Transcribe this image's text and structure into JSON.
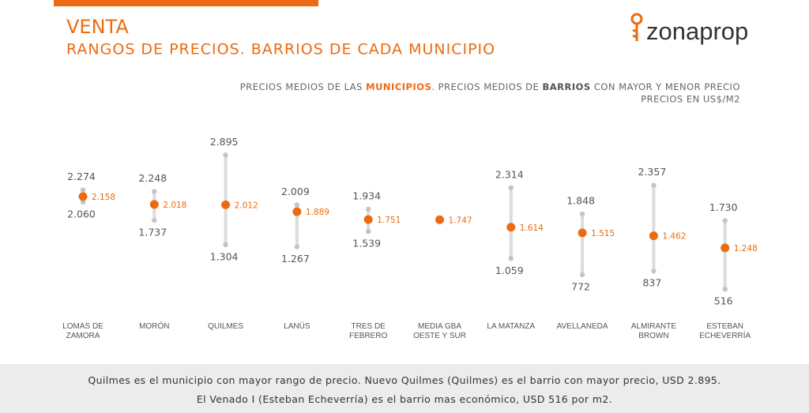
{
  "header": {
    "title": "VENTA",
    "subtitle": "RANGOS DE PRECIOS. BARRIOS DE CADA MUNICIPIO",
    "logo": "zonaprop"
  },
  "chart_data": {
    "type": "range-dot",
    "note": [
      "PRECIOS MEDIOS DE LAS ",
      "MUNICIPIOS",
      ". PRECIOS MEDIOS DE ",
      "BARRIOS",
      " CON MAYOR Y MENOR PRECIO"
    ],
    "units_note": "PRECIOS EN US$/M2",
    "categories": [
      "LOMAS DE ZAMORA",
      "MORÓN",
      "QUILMES",
      "LANÚS",
      "TRES DE FEBRERO",
      "MEDIA GBA OESTE Y SUR",
      "LA MATANZA",
      "AVELLANEDA",
      "ALMIRANTE BROWN",
      "ESTEBAN ECHEVERRÍA"
    ],
    "range_color": "#dcdcdc",
    "series": [
      {
        "color": "#c4c4c4",
        "values": [
          2274,
          2248,
          2895,
          2009,
          1934,
          null,
          2314,
          1848,
          2357,
          1730
        ],
        "value_labels": [
          "2.274",
          "2.248",
          "2.895",
          "2.009",
          "1.934",
          null,
          "2.314",
          "1.848",
          "2.357",
          "1.730"
        ]
      },
      {
        "color": "#ec6b12",
        "values": [
          2158,
          2018,
          2012,
          1889,
          1751,
          1747,
          1614,
          1515,
          1462,
          1248
        ],
        "value_labels": [
          "2.158",
          "2.018",
          "2.012",
          "1.889",
          "1.751",
          "1.747",
          "1.614",
          "1.515",
          "1.462",
          "1.248"
        ]
      },
      {
        "color": "#c4c4c4",
        "values": [
          2060,
          1737,
          1304,
          1267,
          1539,
          null,
          1059,
          772,
          837,
          516
        ],
        "value_labels": [
          "2.060",
          "1.737",
          "1.304",
          "1.267",
          "1.539",
          null,
          "1.059",
          "772",
          "837",
          "516"
        ]
      }
    ]
  },
  "footer": {
    "lines": [
      "Quilmes es el municipio con mayor rango de precio. Nuevo Quilmes (Quilmes) es el barrio con mayor precio, USD 2.895.",
      "El Venado I (Esteban Echeverría) es el barrio mas económico, USD 516 por m2."
    ]
  }
}
